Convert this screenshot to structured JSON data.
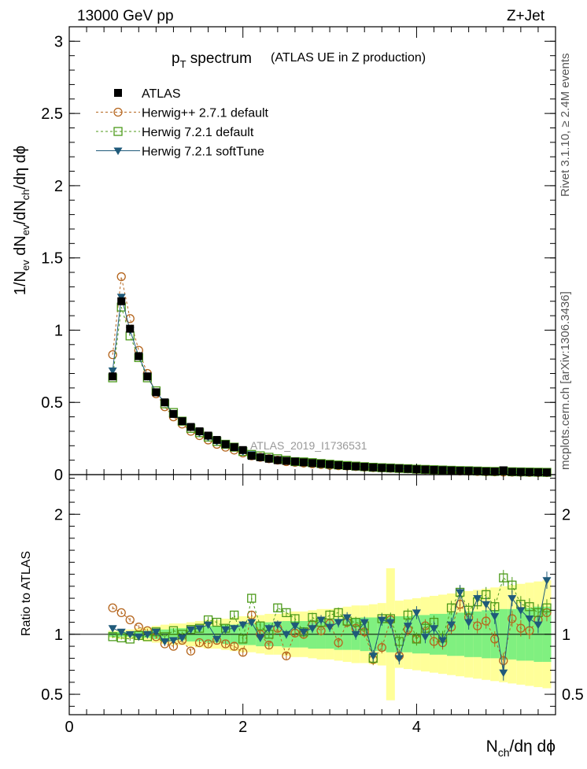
{
  "header": {
    "left": "13000 GeV pp",
    "right": "Z+Jet"
  },
  "title": {
    "main": "p",
    "sub": "T",
    "rest": " spectrum",
    "paren": "(ATLAS UE in Z production)"
  },
  "side_labels": {
    "rivet": "Rivet 3.1.10, ≥ 2.4M events",
    "mcplots": "mcplots.cern.ch [arXiv:1306.3436]"
  },
  "watermark": "ATLAS_2019_I1736531",
  "axes": {
    "ylabel_main": "1/N_ev dN_ev/dN_ch/dη dϕ",
    "ylabel_ratio": "Ratio to ATLAS",
    "xlabel": "N_ch/dη dϕ"
  },
  "colors": {
    "atlas": "#000000",
    "herwigpp": "#b5651d",
    "herwig721": "#4c9a1a",
    "softtune": "#1f5a7a",
    "band_inner": "#80f080",
    "band_outer": "#ffff99"
  },
  "chart_data": {
    "type": "scatter",
    "xlim": [
      0,
      5.6
    ],
    "main_ylim": [
      0,
      3.1
    ],
    "ratio_ylim": [
      0.33,
      2.33
    ],
    "x_ticks": [
      "0",
      "2",
      "4"
    ],
    "main_y_ticks": [
      "0",
      "0.5",
      "1",
      "1.5",
      "2",
      "2.5",
      "3"
    ],
    "ratio_y_ticks": [
      "0.5",
      "1",
      "2"
    ],
    "x": [
      0.5,
      0.6,
      0.7,
      0.8,
      0.9,
      1.0,
      1.1,
      1.2,
      1.3,
      1.4,
      1.5,
      1.6,
      1.7,
      1.8,
      1.9,
      2.0,
      2.1,
      2.2,
      2.3,
      2.4,
      2.5,
      2.6,
      2.7,
      2.8,
      2.9,
      3.0,
      3.1,
      3.2,
      3.3,
      3.4,
      3.5,
      3.6,
      3.7,
      3.8,
      3.9,
      4.0,
      4.1,
      4.2,
      4.3,
      4.4,
      4.5,
      4.6,
      4.7,
      4.8,
      4.9,
      5.0,
      5.1,
      5.2,
      5.3,
      5.4,
      5.5
    ],
    "series": [
      {
        "name": "ATLAS",
        "marker": "square-filled",
        "values": [
          0.68,
          1.2,
          1.01,
          0.82,
          0.68,
          0.57,
          0.5,
          0.42,
          0.37,
          0.33,
          0.3,
          0.27,
          0.24,
          0.21,
          0.19,
          0.17,
          0.13,
          0.12,
          0.11,
          0.1,
          0.095,
          0.09,
          0.085,
          0.08,
          0.075,
          0.07,
          0.065,
          0.06,
          0.057,
          0.054,
          0.05,
          0.047,
          0.045,
          0.043,
          0.04,
          0.037,
          0.035,
          0.033,
          0.031,
          0.029,
          0.027,
          0.026,
          0.024,
          0.022,
          0.021,
          0.03,
          0.019,
          0.018,
          0.017,
          0.016,
          0.015
        ],
        "ratio": [
          1,
          1,
          1,
          1,
          1,
          1,
          1,
          1,
          1,
          1,
          1,
          1,
          1,
          1,
          1,
          1,
          1,
          1,
          1,
          1,
          1,
          1,
          1,
          1,
          1,
          1,
          1,
          1,
          1,
          1,
          1,
          1,
          1,
          1,
          1,
          1,
          1,
          1,
          1,
          1,
          1,
          1,
          1,
          1,
          1,
          1,
          1,
          1,
          1,
          1,
          1
        ]
      },
      {
        "name": "Herwig++ 2.7.1 default",
        "marker": "circle-open",
        "values": [
          0.83,
          1.37,
          1.08,
          0.86,
          0.7,
          0.56,
          0.47,
          0.4,
          0.35,
          0.3,
          0.27,
          0.24,
          0.21,
          0.19,
          0.17,
          0.15,
          0.13,
          0.12,
          0.11,
          0.1,
          0.09,
          0.085,
          0.08,
          0.075,
          0.07,
          0.065,
          0.062,
          0.06,
          0.056,
          0.052,
          0.048,
          0.046,
          0.044,
          0.042,
          0.04,
          0.036,
          0.034,
          0.031,
          0.029,
          0.027,
          0.025,
          0.024,
          0.022,
          0.02,
          0.019,
          0.018,
          0.017,
          0.016,
          0.015,
          0.014,
          0.014
        ],
        "ratio": [
          1.22,
          1.18,
          1.12,
          1.06,
          1.03,
          0.98,
          0.92,
          0.9,
          0.95,
          0.86,
          0.93,
          0.92,
          0.95,
          0.92,
          0.9,
          0.85,
          1.16,
          1.0,
          0.91,
          1.05,
          0.82,
          1.01,
          1.0,
          1.08,
          1.03,
          1.09,
          0.93,
          1.1,
          1.05,
          1.02,
          0.79,
          0.89,
          1.12,
          0.82,
          1.04,
          0.96,
          1.07,
          0.94,
          0.93,
          1.06,
          1.25,
          1.14,
          1.07,
          1.11,
          0.96,
          0.78,
          1.13,
          1.05,
          1.03,
          1.12,
          1.18
        ]
      },
      {
        "name": "Herwig 7.2.1 default",
        "marker": "square-open",
        "values": [
          0.67,
          1.16,
          0.96,
          0.81,
          0.67,
          0.58,
          0.49,
          0.43,
          0.37,
          0.32,
          0.29,
          0.26,
          0.23,
          0.21,
          0.19,
          0.16,
          0.14,
          0.13,
          0.12,
          0.11,
          0.1,
          0.09,
          0.088,
          0.083,
          0.077,
          0.072,
          0.067,
          0.063,
          0.059,
          0.055,
          0.051,
          0.048,
          0.046,
          0.043,
          0.041,
          0.038,
          0.036,
          0.034,
          0.032,
          0.03,
          0.028,
          0.027,
          0.025,
          0.023,
          0.022,
          0.025,
          0.02,
          0.019,
          0.018,
          0.017,
          0.016
        ],
        "ratio": [
          0.98,
          0.97,
          0.96,
          0.99,
          0.98,
          1.02,
          0.98,
          1.03,
          1.0,
          1.04,
          1.05,
          1.12,
          1.1,
          1.05,
          1.16,
          0.96,
          1.3,
          1.07,
          1.0,
          1.22,
          1.18,
          1.13,
          1.02,
          1.14,
          1.1,
          1.16,
          1.18,
          1.11,
          1.1,
          1.07,
          0.8,
          1.13,
          1.13,
          0.94,
          1.16,
          0.96,
          1.05,
          1.1,
          0.97,
          1.22,
          1.35,
          1.2,
          1.27,
          1.33,
          1.23,
          1.47,
          1.41,
          1.25,
          1.23,
          1.18,
          1.22
        ]
      },
      {
        "name": "Herwig 7.2.1 softTune",
        "marker": "triangle-down-filled",
        "values": [
          0.72,
          1.23,
          1.0,
          0.82,
          0.68,
          0.57,
          0.5,
          0.42,
          0.37,
          0.33,
          0.29,
          0.26,
          0.23,
          0.21,
          0.19,
          0.16,
          0.14,
          0.125,
          0.115,
          0.105,
          0.097,
          0.09,
          0.085,
          0.08,
          0.075,
          0.07,
          0.066,
          0.062,
          0.058,
          0.054,
          0.05,
          0.047,
          0.045,
          0.042,
          0.04,
          0.037,
          0.035,
          0.033,
          0.031,
          0.029,
          0.027,
          0.026,
          0.024,
          0.022,
          0.021,
          0.021,
          0.019,
          0.018,
          0.017,
          0.016,
          0.015
        ],
        "ratio": [
          1.05,
          1.02,
          1.0,
          0.98,
          1.0,
          1.02,
          0.94,
          0.95,
          0.97,
          1.04,
          1.05,
          1.08,
          0.96,
          1.04,
          1.05,
          1.08,
          1.1,
          0.97,
          1.05,
          1.08,
          1.0,
          1.07,
          1.02,
          1.05,
          1.12,
          1.06,
          1.1,
          1.14,
          1.0,
          1.1,
          0.82,
          1.12,
          1.1,
          0.8,
          1.07,
          1.18,
          0.98,
          1.05,
          0.95,
          1.08,
          1.35,
          1.1,
          1.3,
          1.25,
          1.15,
          0.68,
          1.3,
          1.2,
          1.13,
          1.08,
          1.45
        ]
      }
    ],
    "ratio_band_inner": [
      0.02,
      0.02,
      0.02,
      0.03,
      0.03,
      0.04,
      0.04,
      0.05,
      0.05,
      0.06,
      0.06,
      0.07,
      0.07,
      0.08,
      0.08,
      0.09,
      0.09,
      0.1,
      0.1,
      0.1,
      0.11,
      0.11,
      0.11,
      0.12,
      0.12,
      0.12,
      0.13,
      0.13,
      0.13,
      0.14,
      0.14,
      0.14,
      0.15,
      0.15,
      0.15,
      0.16,
      0.16,
      0.17,
      0.17,
      0.18,
      0.18,
      0.19,
      0.19,
      0.2,
      0.2,
      0.21,
      0.21,
      0.22,
      0.22,
      0.23,
      0.23
    ],
    "ratio_band_outer": [
      0.03,
      0.04,
      0.04,
      0.05,
      0.06,
      0.07,
      0.08,
      0.09,
      0.09,
      0.1,
      0.11,
      0.12,
      0.12,
      0.13,
      0.14,
      0.15,
      0.15,
      0.16,
      0.17,
      0.17,
      0.18,
      0.19,
      0.19,
      0.2,
      0.21,
      0.21,
      0.22,
      0.23,
      0.24,
      0.24,
      0.25,
      0.26,
      0.55,
      0.28,
      0.29,
      0.3,
      0.31,
      0.32,
      0.33,
      0.34,
      0.35,
      0.36,
      0.37,
      0.38,
      0.39,
      0.4,
      0.41,
      0.42,
      0.43,
      0.44,
      0.45
    ]
  }
}
